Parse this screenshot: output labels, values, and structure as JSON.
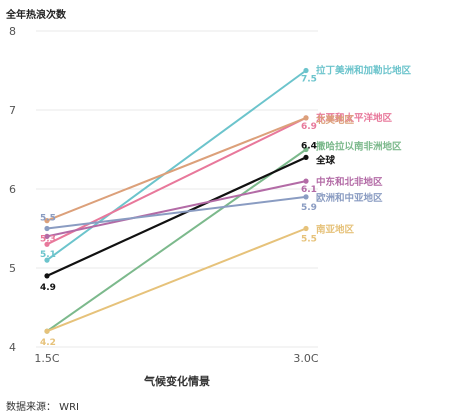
{
  "chart_data": {
    "type": "line",
    "ylabel": "全年热浪次数",
    "xlabel": "气候变化情景",
    "source": "数据来源：  WRI",
    "categories": [
      "1.5C",
      "3.0C"
    ],
    "ylim": [
      4,
      8
    ],
    "yticks": [
      "4",
      "5",
      "6",
      "7",
      "8"
    ],
    "grid": true,
    "series": [
      {
        "name": "拉丁美洲和加勒比地区",
        "values": [
          5.1,
          7.5
        ],
        "labels": [
          "5.1",
          "7.5"
        ],
        "color": "#6cc4cc"
      },
      {
        "name": "东亚和太平洋地区",
        "values": [
          5.3,
          6.9
        ],
        "labels": [
          "5.3",
          "6.9"
        ],
        "color": "#e8789b"
      },
      {
        "name": "北美地区",
        "values": [
          5.6,
          6.9
        ],
        "labels": [
          "",
          ""
        ],
        "color": "#dca07a"
      },
      {
        "name": "撒哈拉以南非洲地区",
        "values": [
          4.2,
          6.5
        ],
        "labels": [
          "",
          ""
        ],
        "color": "#7cb98c"
      },
      {
        "name": "全球",
        "values": [
          4.9,
          6.4
        ],
        "labels": [
          "4.9",
          "6.4"
        ],
        "color": "#111111"
      },
      {
        "name": "中东和北非地区",
        "values": [
          5.4,
          6.1
        ],
        "labels": [
          "",
          "6.1"
        ],
        "color": "#b36ba6"
      },
      {
        "name": "欧洲和中亚地区",
        "values": [
          5.5,
          5.9
        ],
        "labels": [
          "5.5",
          "5.9"
        ],
        "color": "#8a9cc2"
      },
      {
        "name": "南亚地区",
        "values": [
          4.2,
          5.5
        ],
        "labels": [
          "4.2",
          "5.5"
        ],
        "color": "#e6c27a"
      }
    ]
  }
}
